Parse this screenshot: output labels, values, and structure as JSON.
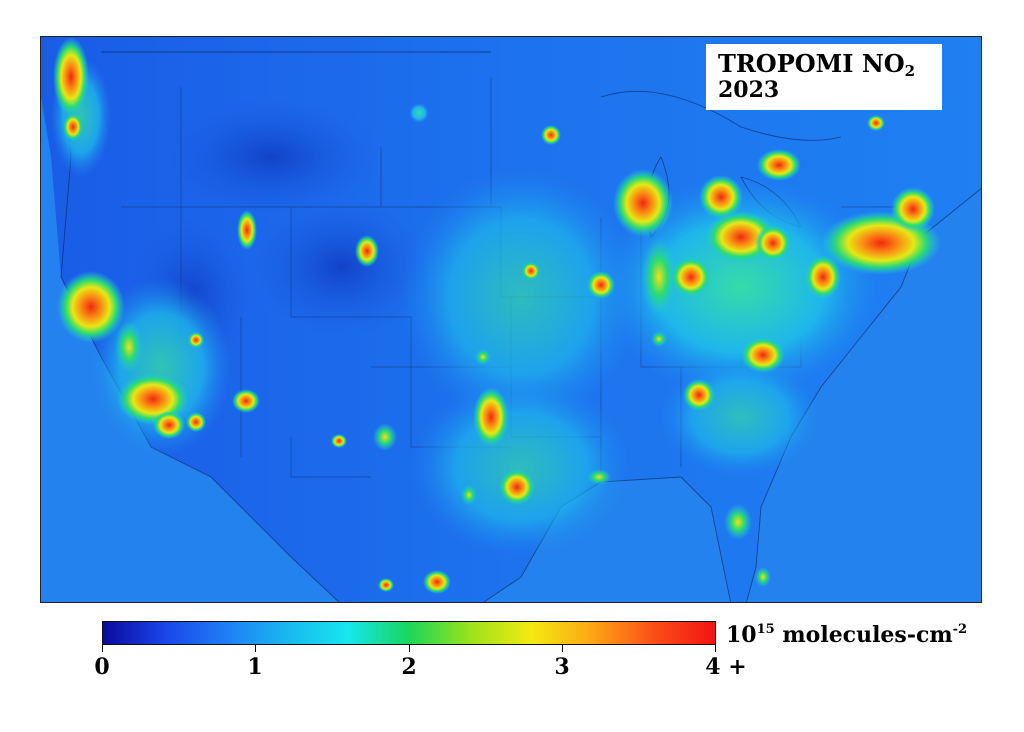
{
  "title": {
    "main": "TROPOMI NO",
    "subscript": "2",
    "year": "2023"
  },
  "colorbar": {
    "ticks": [
      "0",
      "1",
      "2",
      "3",
      "4 +"
    ],
    "unit_base": "10",
    "unit_exponent": "15",
    "unit_text": " molecules-cm",
    "unit_exponent2": "-2",
    "stops": [
      "#0a0a9e",
      "#1a45e8",
      "#1f7df5",
      "#19b8ef",
      "#16e6ee",
      "#19d65a",
      "#9be21a",
      "#f3ea12",
      "#fda514",
      "#fb4e18",
      "#f21414"
    ]
  },
  "map": {
    "background": "#1f6cf0",
    "ocean": "#2a86ee",
    "low": "#1450d6",
    "hotspot_colors": [
      "#1ec4e8",
      "#2be07a",
      "#d8e814",
      "#fb9a14",
      "#f02810"
    ]
  }
}
